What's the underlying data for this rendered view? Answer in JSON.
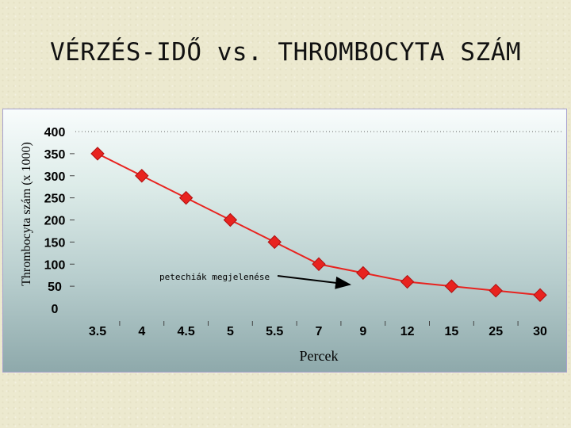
{
  "slide": {
    "title": "VÉRZÉS-IDŐ vs. THROMBOCYTA SZÁM"
  },
  "colors": {
    "line": "#e8231f",
    "marker": "#e8231f",
    "marker_edge": "#b01010",
    "arrow": "#000000"
  },
  "chart_data": {
    "type": "line",
    "categories": [
      "3.5",
      "4",
      "4.5",
      "5",
      "5.5",
      "7",
      "9",
      "12",
      "15",
      "25",
      "30"
    ],
    "series": [
      {
        "values": [
          350,
          300,
          250,
          200,
          150,
          100,
          80,
          60,
          50,
          40,
          30
        ]
      }
    ],
    "ylabel": "Thrombocyta szám (x 1000)",
    "xlabel": "Percek",
    "ylim": [
      0,
      400
    ],
    "yticks": [
      "0",
      "50",
      "100",
      "150",
      "200",
      "250",
      "300",
      "350",
      "400"
    ],
    "grid": "horizontal dotted at top only",
    "legend": "none",
    "annotation": {
      "text": "petechiák megjelenése",
      "points_to_category": "9"
    }
  }
}
